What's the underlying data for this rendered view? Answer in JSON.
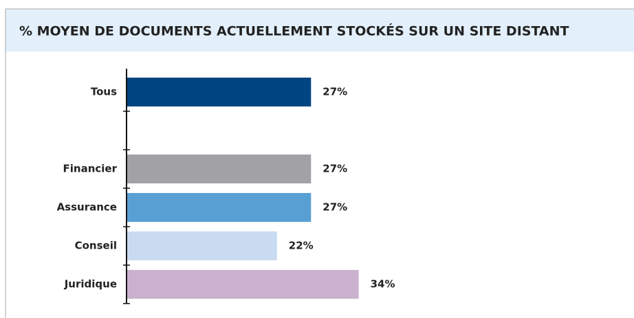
{
  "chart_data": {
    "type": "bar",
    "orientation": "horizontal",
    "title": "% MOYEN DE DOCUMENTS ACTUELLEMENT STOCKÉS SUR UN SITE DISTANT",
    "categories": [
      "Tous",
      null,
      "Financier",
      "Assurance",
      "Conseil",
      "Juridique"
    ],
    "values": [
      27,
      null,
      27,
      27,
      22,
      34
    ],
    "value_labels": [
      "27%",
      null,
      "27%",
      "27%",
      "22%",
      "34%"
    ],
    "colors": [
      "#004481",
      null,
      "#a2a1a6",
      "#58a0d4",
      "#c9dbf1",
      "#cab2cf"
    ]
  }
}
